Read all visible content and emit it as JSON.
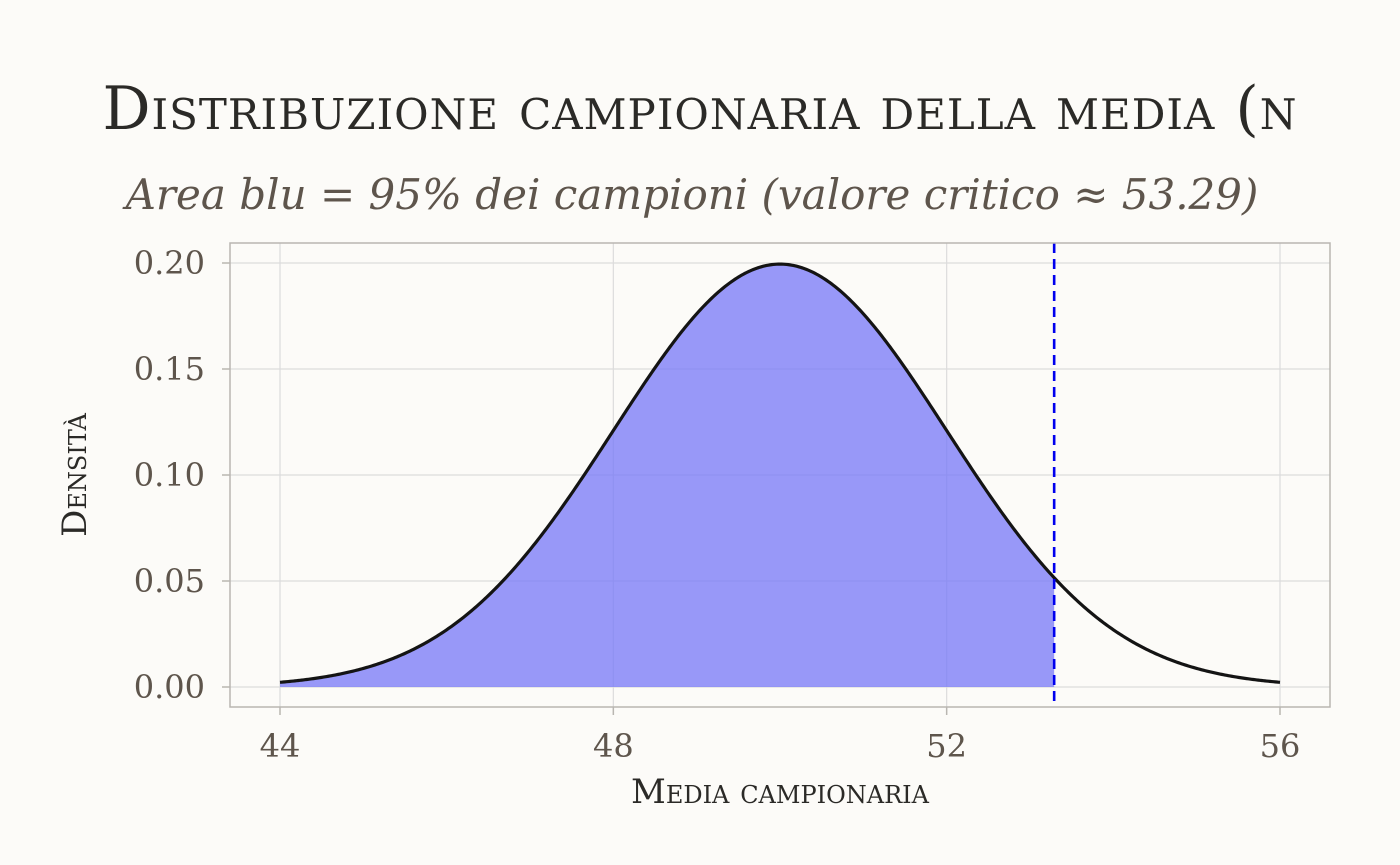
{
  "chart_data": {
    "type": "area",
    "title": "Distribuzione campionaria della media (n",
    "subtitle": "Area blu = 95% dei campioni (valore critico ≈ 53.29)",
    "xlabel": "Media campionaria",
    "ylabel": "Densità",
    "xlim": [
      44,
      56
    ],
    "ylim": [
      0,
      0.2
    ],
    "x_ticks": [
      "44",
      "48",
      "52",
      "56"
    ],
    "y_ticks": [
      "0.00",
      "0.05",
      "0.10",
      "0.15",
      "0.20"
    ],
    "distribution": {
      "mean": 50,
      "sd": 2
    },
    "critical_value": 53.29,
    "shaded_coverage": "95%",
    "grid": true,
    "colors": {
      "shaded_area": "#7b7cf7",
      "curve": "#141414",
      "critical_line": "#0000ee",
      "grid": "#dcdcdc",
      "background": "#fcfbf8"
    }
  }
}
